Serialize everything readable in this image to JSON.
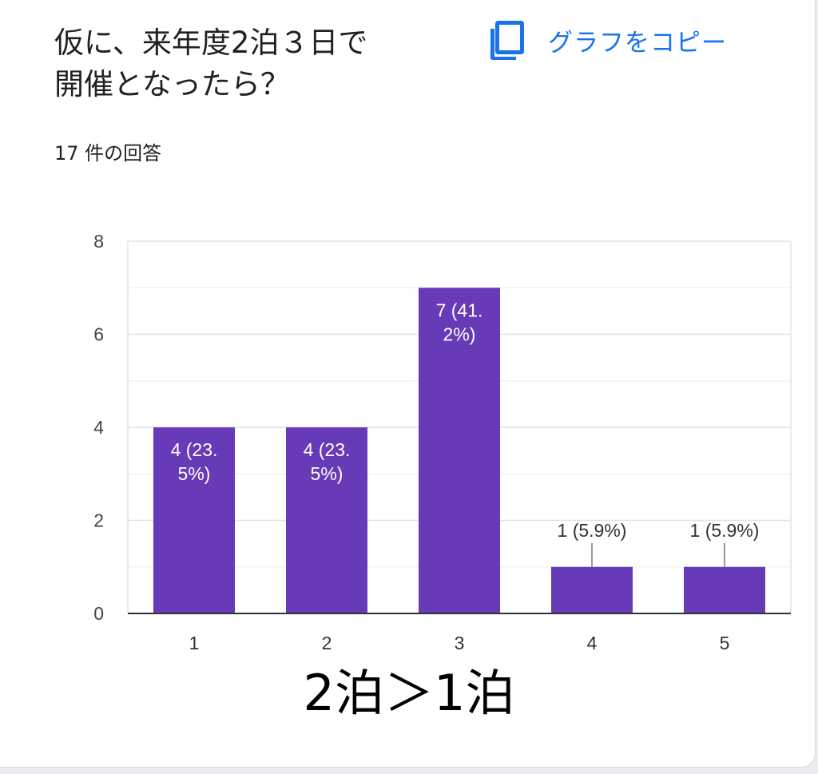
{
  "question": {
    "line1": "仮に、来年度2泊３日で",
    "line2": "開催となったら？"
  },
  "copy": {
    "label": "グラフをコピー",
    "icon": "copy-icon"
  },
  "response_count": "17 件の回答",
  "note": "2泊＞1泊",
  "colors": {
    "bar": "#673ab7",
    "accent": "#1a73e8",
    "grid": "#e9e9e9",
    "axis": "#333333"
  },
  "chart_data": {
    "type": "bar",
    "categories": [
      "1",
      "2",
      "3",
      "4",
      "5"
    ],
    "values": [
      4,
      4,
      7,
      1,
      1
    ],
    "labels": [
      "4 (23.5%)",
      "4 (23.5%)",
      "7 (41.2%)",
      "1 (5.9%)",
      "1 (5.9%)"
    ],
    "title": "",
    "xlabel": "",
    "ylabel": "",
    "ylim": [
      0,
      8
    ],
    "yticks": [
      0,
      2,
      4,
      6,
      8
    ],
    "grid": true
  }
}
